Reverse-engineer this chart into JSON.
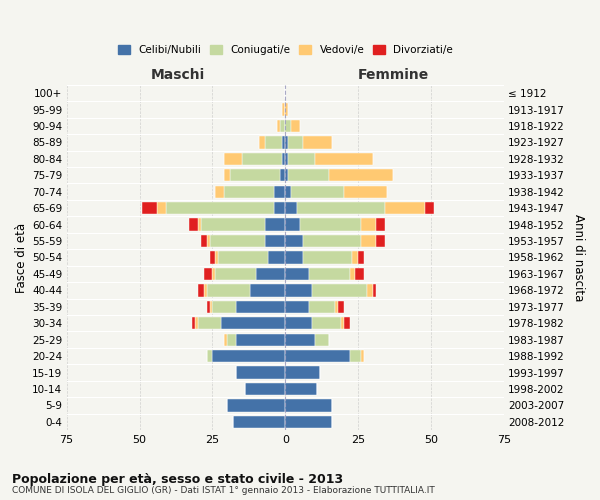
{
  "age_groups": [
    "0-4",
    "5-9",
    "10-14",
    "15-19",
    "20-24",
    "25-29",
    "30-34",
    "35-39",
    "40-44",
    "45-49",
    "50-54",
    "55-59",
    "60-64",
    "65-69",
    "70-74",
    "75-79",
    "80-84",
    "85-89",
    "90-94",
    "95-99",
    "100+"
  ],
  "birth_years": [
    "2008-2012",
    "2003-2007",
    "1998-2002",
    "1993-1997",
    "1988-1992",
    "1983-1987",
    "1978-1982",
    "1973-1977",
    "1968-1972",
    "1963-1967",
    "1958-1962",
    "1953-1957",
    "1948-1952",
    "1943-1947",
    "1938-1942",
    "1933-1937",
    "1928-1932",
    "1923-1927",
    "1918-1922",
    "1913-1917",
    "≤ 1912"
  ],
  "male": {
    "celibi": [
      18,
      20,
      14,
      17,
      25,
      17,
      22,
      17,
      12,
      10,
      6,
      7,
      7,
      4,
      4,
      2,
      1,
      1,
      0,
      0,
      0
    ],
    "coniugati": [
      0,
      0,
      0,
      0,
      2,
      3,
      8,
      8,
      15,
      14,
      17,
      19,
      22,
      37,
      17,
      17,
      14,
      6,
      2,
      0,
      0
    ],
    "vedovi": [
      0,
      0,
      0,
      0,
      0,
      1,
      1,
      1,
      1,
      1,
      1,
      1,
      1,
      3,
      3,
      2,
      6,
      2,
      1,
      1,
      0
    ],
    "divorziati": [
      0,
      0,
      0,
      0,
      0,
      0,
      1,
      1,
      2,
      3,
      2,
      2,
      3,
      5,
      0,
      0,
      0,
      0,
      0,
      0,
      0
    ]
  },
  "female": {
    "nubili": [
      16,
      16,
      11,
      12,
      22,
      10,
      9,
      8,
      9,
      8,
      6,
      6,
      5,
      4,
      2,
      1,
      1,
      1,
      0,
      0,
      0
    ],
    "coniugate": [
      0,
      0,
      0,
      0,
      4,
      5,
      10,
      9,
      19,
      14,
      17,
      20,
      21,
      30,
      18,
      14,
      9,
      5,
      2,
      0,
      0
    ],
    "vedove": [
      0,
      0,
      0,
      0,
      1,
      0,
      1,
      1,
      2,
      2,
      2,
      5,
      5,
      14,
      15,
      22,
      20,
      10,
      3,
      1,
      0
    ],
    "divorziate": [
      0,
      0,
      0,
      0,
      0,
      0,
      2,
      2,
      1,
      3,
      2,
      3,
      3,
      3,
      0,
      0,
      0,
      0,
      0,
      0,
      0
    ]
  },
  "colors": {
    "celibi": "#4472a8",
    "coniugati": "#c5d9a0",
    "vedovi": "#ffc972",
    "divorziati": "#e02020"
  },
  "xlim": 75,
  "title": "Popolazione per età, sesso e stato civile - 2013",
  "subtitle": "COMUNE DI ISOLA DEL GIGLIO (GR) - Dati ISTAT 1° gennaio 2013 - Elaborazione TUTTITALIA.IT",
  "xlabel_left": "Maschi",
  "xlabel_right": "Femmine",
  "ylabel": "Fasce di età",
  "ylabel_right": "Anni di nascita",
  "xticks": [
    -75,
    -50,
    -25,
    0,
    25,
    50,
    75
  ],
  "xtick_labels": [
    "75",
    "50",
    "25",
    "0",
    "25",
    "50",
    "75"
  ],
  "legend_labels": [
    "Celibi/Nubili",
    "Coniugati/e",
    "Vedovi/e",
    "Divorziati/e"
  ],
  "bg_color": "#f5f5f0"
}
